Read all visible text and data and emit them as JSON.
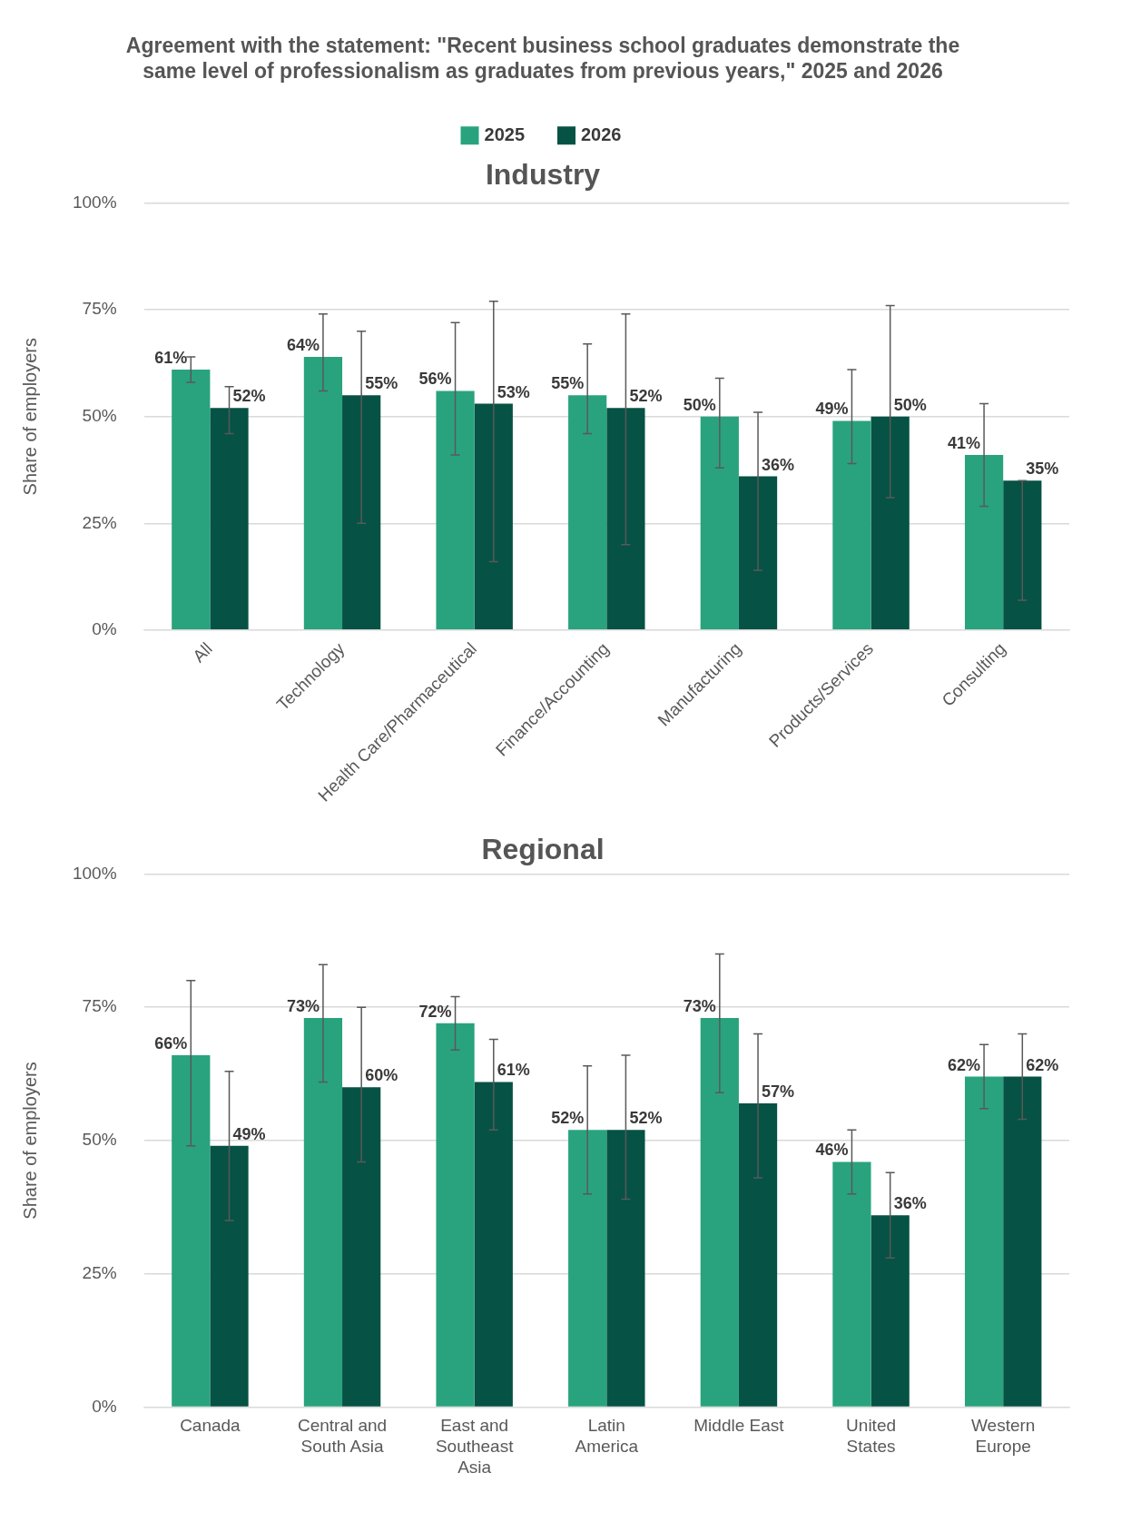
{
  "chart_data": [
    {
      "type": "bar",
      "title": "Agreement with the statement: \"Recent business school graduates demonstrate the same level of professionalism as graduates from previous years,\" 2025 and 2026",
      "subtitle": "Industry",
      "ylabel": "Share of employers",
      "categories": [
        "All",
        "Technology",
        "Health Care/Pharmaceutical",
        "Finance/Accounting",
        "Manufacturing",
        "Products/Services",
        "Consulting"
      ],
      "series": [
        {
          "name": "2025",
          "color": "#29a37e",
          "values": [
            61,
            64,
            56,
            55,
            50,
            49,
            41
          ],
          "value_labels": [
            "61%",
            "64%",
            "56%",
            "55%",
            "50%",
            "49%",
            "41%"
          ],
          "errors": [
            [
              58,
              64
            ],
            [
              56,
              74
            ],
            [
              41,
              72
            ],
            [
              46,
              67
            ],
            [
              38,
              59
            ],
            [
              39,
              61
            ],
            [
              29,
              53
            ]
          ]
        },
        {
          "name": "2026",
          "color": "#065244",
          "values": [
            52,
            55,
            53,
            52,
            36,
            50,
            35
          ],
          "value_labels": [
            "52%",
            "55%",
            "53%",
            "52%",
            "36%",
            "50%",
            "35%"
          ],
          "errors": [
            [
              46,
              57
            ],
            [
              25,
              70
            ],
            [
              16,
              77
            ],
            [
              20,
              74
            ],
            [
              14,
              51
            ],
            [
              31,
              76
            ],
            [
              7,
              35
            ]
          ]
        }
      ],
      "ylim": [
        0,
        100
      ],
      "yticks": [
        {
          "value": 0,
          "label": "0%"
        },
        {
          "value": 25,
          "label": "25%"
        },
        {
          "value": 50,
          "label": "50%"
        },
        {
          "value": 75,
          "label": "75%"
        },
        {
          "value": 100,
          "label": "100%"
        }
      ],
      "grid": "y",
      "legend": "top"
    },
    {
      "type": "bar",
      "title": "Regional",
      "ylabel": "Share of employers",
      "categories": [
        "Canada",
        "Central and South Asia",
        "East and Southeast Asia",
        "Latin America",
        "Middle East",
        "United States",
        "Western Europe"
      ],
      "series": [
        {
          "color": "#29a37e",
          "values": [
            66,
            73,
            72,
            52,
            73,
            46,
            62
          ],
          "value_labels": [
            "66%",
            "73%",
            "72%",
            "52%",
            "73%",
            "46%",
            "62%"
          ],
          "errors": [
            [
              49,
              80
            ],
            [
              61,
              83
            ],
            [
              67,
              77
            ],
            [
              40,
              64
            ],
            [
              59,
              85
            ],
            [
              40,
              52
            ],
            [
              56,
              68
            ]
          ]
        },
        {
          "color": "#065244",
          "values": [
            49,
            60,
            61,
            52,
            57,
            36,
            62
          ],
          "value_labels": [
            "49%",
            "60%",
            "61%",
            "52%",
            "57%",
            "36%",
            "62%"
          ],
          "errors": [
            [
              35,
              63
            ],
            [
              46,
              75
            ],
            [
              52,
              69
            ],
            [
              39,
              66
            ],
            [
              43,
              70
            ],
            [
              28,
              44
            ],
            [
              54,
              70
            ]
          ]
        }
      ],
      "ylim": [
        0,
        100
      ],
      "yticks": [
        {
          "value": 0,
          "label": "0%"
        },
        {
          "value": 25,
          "label": "25%"
        },
        {
          "value": 50,
          "label": "50%"
        },
        {
          "value": 75,
          "label": "75%"
        },
        {
          "value": 100,
          "label": "100%"
        }
      ],
      "grid": "y"
    }
  ]
}
